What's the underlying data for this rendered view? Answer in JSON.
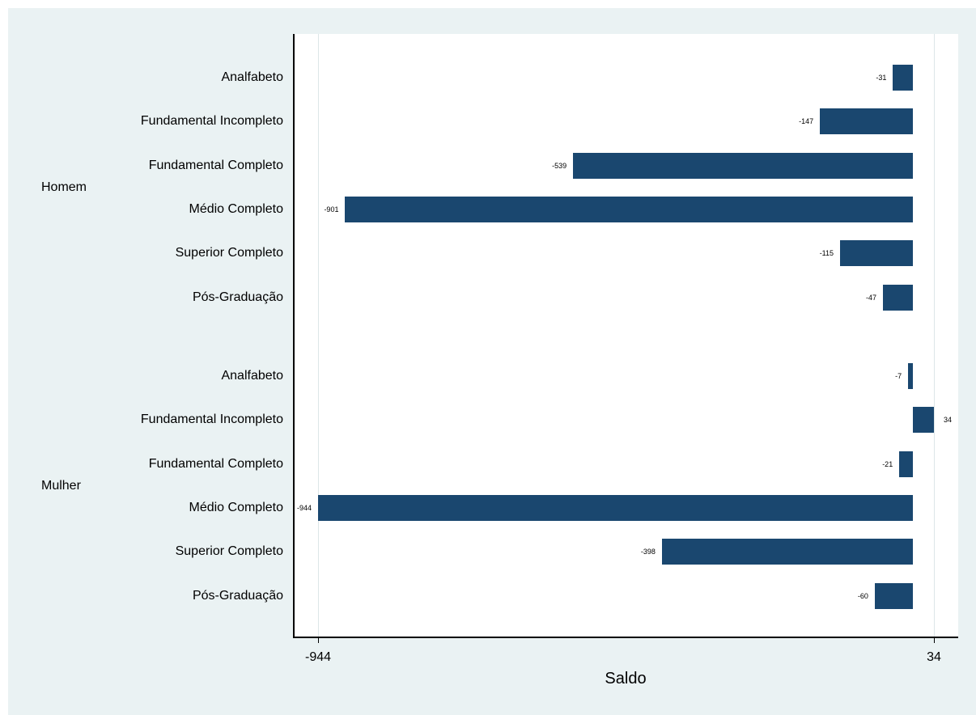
{
  "chart_data": {
    "type": "bar",
    "orientation": "horizontal",
    "xlabel": "Saldo",
    "ylabel": "",
    "xlim": [
      -944,
      34
    ],
    "x_ticks": [
      "-944",
      "34"
    ],
    "grid": true,
    "legend": "none",
    "bar_color": "#1a476f",
    "groups": [
      {
        "name": "Homem",
        "categories": [
          "Analfabeto",
          "Fundamental Incompleto",
          "Fundamental Completo",
          "Médio Completo",
          "Superior Completo",
          "Pós-Graduação"
        ],
        "values": [
          -31,
          -147,
          -539,
          -901,
          -115,
          -47
        ],
        "labels": [
          "-31",
          "-147",
          "-539",
          "-901",
          "-115",
          "-47"
        ]
      },
      {
        "name": "Mulher",
        "categories": [
          "Analfabeto",
          "Fundamental Incompleto",
          "Fundamental Completo",
          "Médio Completo",
          "Superior Completo",
          "Pós-Graduação"
        ],
        "values": [
          -7,
          34,
          -21,
          -944,
          -398,
          -60
        ],
        "labels": [
          "-7",
          "34",
          "-21",
          "-944",
          "-398",
          "-60"
        ]
      }
    ]
  }
}
